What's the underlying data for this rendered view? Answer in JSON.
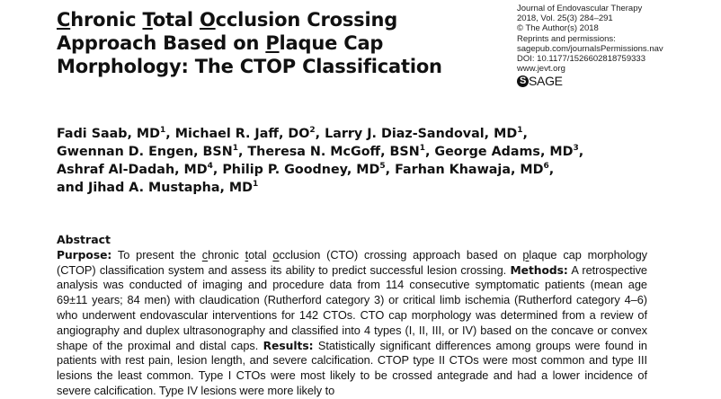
{
  "article": {
    "title_lines": [
      [
        {
          "u": "C",
          "t": "hronic "
        },
        {
          "u": "T",
          "t": "otal "
        },
        {
          "u": "O",
          "t": "cclusion Crossing"
        }
      ],
      [
        {
          "u": "",
          "t": "Approach Based on "
        },
        {
          "u": "P",
          "t": "laque Cap"
        }
      ],
      [
        {
          "u": "",
          "t": "Morphology: The CTOP Classification"
        }
      ]
    ],
    "title_text": "Chronic Total Occlusion Crossing Approach Based on Plaque Cap Morphology: The CTOP Classification"
  },
  "journal_info": {
    "journal": "Journal of Endovascular Therapy",
    "volume": "2018, Vol. 25(3) 284–291",
    "copyright": "© The Author(s) 2018",
    "reprints": "Reprints and permissions:",
    "permissions_url": "sagepub.com/journalsPermissions.nav",
    "doi": "DOI: 10.1177/1526602818759333",
    "website": "www.jevt.org",
    "publisher_logo": {
      "icon": "sage-s-circle-icon",
      "text": "SAGE"
    }
  },
  "authors": {
    "lines": [
      [
        {
          "name": "Fadi Saab, MD",
          "sup": "1",
          "sep": ", "
        },
        {
          "name": "Michael R. Jaff, DO",
          "sup": "2",
          "sep": ", "
        },
        {
          "name": "Larry J. Diaz-Sandoval, MD",
          "sup": "1",
          "sep": ","
        }
      ],
      [
        {
          "name": "Gwennan D. Engen, BSN",
          "sup": "1",
          "sep": ", "
        },
        {
          "name": "Theresa N. McGoff, BSN",
          "sup": "1",
          "sep": ", "
        },
        {
          "name": "George Adams, MD",
          "sup": "3",
          "sep": ","
        }
      ],
      [
        {
          "name": "Ashraf Al-Dadah, MD",
          "sup": "4",
          "sep": ", "
        },
        {
          "name": "Philip P. Goodney, MD",
          "sup": "5",
          "sep": ", "
        },
        {
          "name": "Farhan Khawaja, MD",
          "sup": "6",
          "sep": ","
        }
      ],
      [
        {
          "name": "and Jihad A. Mustapha, MD",
          "sup": "1",
          "sep": ""
        }
      ]
    ]
  },
  "abstract": {
    "heading": "Abstract",
    "sections": {
      "purpose_label": "Purpose:",
      "purpose_parts": [
        {
          "t": " To present the "
        },
        {
          "u": "c",
          "t": "hronic "
        },
        {
          "u": "t",
          "t": "otal "
        },
        {
          "u": "o",
          "t": "cclusion (CTO) crossing approach based on "
        },
        {
          "u": "p",
          "t": "laque cap morphology (CTOP) classification system and assess its ability to predict successful lesion crossing. "
        }
      ],
      "methods_label": "Methods:",
      "methods_text": " A retrospective analysis was conducted of imaging and procedure data from 114 consecutive symptomatic patients (mean age 69±11 years; 84 men) with claudication (Rutherford category 3) or critical limb ischemia (Rutherford category 4–6) who underwent endovascular interventions for 142 CTOs. CTO cap morphology was determined from a review of angiography and duplex ultrasonography and classified into 4 types (I, II, III, or IV) based on the concave or convex shape of the proximal and distal caps. ",
      "results_label": "Results:",
      "results_text": " Statistically significant differences among groups were found in patients with rest pain, lesion length, and severe calcification. CTOP type II CTOs were most common and type III lesions the least common. Type I CTOs were most likely to be crossed antegrade and had a lower incidence of severe calcification. Type IV lesions were more likely to"
    }
  }
}
